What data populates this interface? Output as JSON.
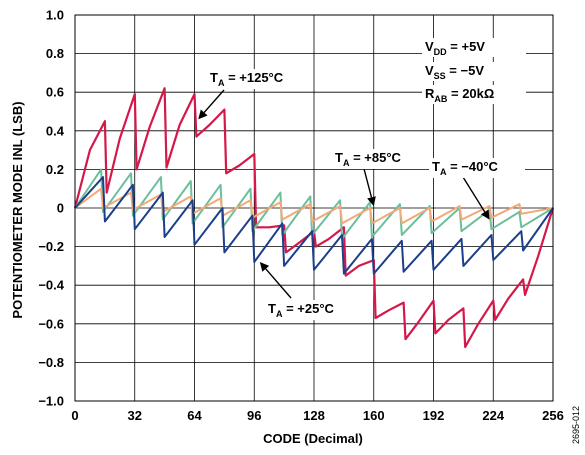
{
  "chart_data": {
    "type": "line",
    "title": "",
    "xlabel": "CODE (Decimal)",
    "ylabel": "POTENTIOMETER MODE INL (LSB)",
    "xlim": [
      0,
      256
    ],
    "ylim": [
      -1.0,
      1.0
    ],
    "x_ticks": [
      "0",
      "32",
      "64",
      "96",
      "128",
      "160",
      "192",
      "224",
      "256"
    ],
    "y_ticks": [
      "1.0",
      "0.8",
      "0.6",
      "0.4",
      "0.2",
      "0",
      "−0.2",
      "−0.4",
      "−0.6",
      "−0.8",
      "−1.0"
    ],
    "grid": true,
    "figure_id": "2695-012",
    "conditions": [
      {
        "main": "V",
        "sub": "DD",
        "rest": " = +5V"
      },
      {
        "main": "V",
        "sub": "SS",
        "rest": " = −5V"
      },
      {
        "main": "R",
        "sub": "AB",
        "rest": " = 20kΩ"
      }
    ],
    "series": [
      {
        "name_main": "T",
        "name_sub": "A",
        "name_rest": " = +125°C",
        "color": "#d4184a",
        "x": [
          0,
          8,
          16,
          17,
          24,
          32,
          33,
          40,
          48,
          49,
          56,
          64,
          65,
          72,
          80,
          81,
          88,
          96,
          97,
          104,
          112,
          113,
          120,
          128,
          129,
          136,
          144,
          145,
          152,
          160,
          161,
          168,
          176,
          177,
          184,
          192,
          193,
          200,
          208,
          209,
          216,
          224,
          225,
          232,
          240,
          241,
          248,
          256
        ],
        "y": [
          0.0,
          0.3,
          0.45,
          0.08,
          0.36,
          0.59,
          0.2,
          0.42,
          0.62,
          0.21,
          0.43,
          0.59,
          0.37,
          0.43,
          0.51,
          0.18,
          0.22,
          0.28,
          -0.1,
          -0.1,
          -0.09,
          -0.23,
          -0.18,
          -0.12,
          -0.2,
          -0.16,
          -0.1,
          -0.35,
          -0.3,
          -0.27,
          -0.57,
          -0.53,
          -0.49,
          -0.68,
          -0.59,
          -0.48,
          -0.65,
          -0.58,
          -0.52,
          -0.72,
          -0.6,
          -0.48,
          -0.58,
          -0.47,
          -0.37,
          -0.45,
          -0.25,
          0.0
        ]
      },
      {
        "name_main": "T",
        "name_sub": "A",
        "name_rest": " = +85°C",
        "color": "#6cbf9b",
        "x": [
          0,
          14,
          15,
          30,
          31,
          46,
          47,
          62,
          63,
          78,
          79,
          94,
          95,
          110,
          111,
          126,
          127,
          142,
          143,
          158,
          159,
          174,
          175,
          190,
          191,
          206,
          207,
          222,
          223,
          238,
          239,
          256
        ],
        "y": [
          0.0,
          0.2,
          -0.02,
          0.18,
          -0.04,
          0.16,
          -0.06,
          0.14,
          -0.08,
          0.12,
          -0.1,
          0.1,
          -0.12,
          0.08,
          -0.14,
          0.06,
          -0.14,
          0.04,
          -0.16,
          0.03,
          -0.15,
          0.02,
          -0.14,
          0.01,
          -0.13,
          0.0,
          -0.12,
          -0.01,
          -0.11,
          -0.02,
          -0.1,
          0.0
        ]
      },
      {
        "name_main": "T",
        "name_sub": "A",
        "name_rest": " = −40°C",
        "color": "#f2a978",
        "x": [
          0,
          14,
          15,
          30,
          31,
          46,
          47,
          62,
          63,
          78,
          79,
          94,
          95,
          110,
          111,
          126,
          127,
          142,
          143,
          158,
          159,
          174,
          175,
          190,
          191,
          206,
          207,
          222,
          223,
          238,
          239,
          256
        ],
        "y": [
          0.0,
          0.1,
          0.0,
          0.08,
          -0.01,
          0.07,
          -0.02,
          0.06,
          -0.03,
          0.05,
          -0.04,
          0.04,
          -0.05,
          0.03,
          -0.06,
          0.02,
          -0.07,
          0.01,
          -0.08,
          0.0,
          -0.08,
          0.0,
          -0.08,
          0.0,
          -0.07,
          0.01,
          -0.06,
          0.01,
          -0.05,
          0.02,
          -0.03,
          0.0
        ]
      },
      {
        "name_main": "T",
        "name_sub": "A",
        "name_rest": " = +25°C",
        "color": "#1b3f8c",
        "x": [
          0,
          15,
          16,
          31,
          32,
          47,
          48,
          63,
          64,
          79,
          80,
          95,
          96,
          111,
          112,
          127,
          128,
          143,
          144,
          159,
          160,
          175,
          176,
          191,
          192,
          207,
          208,
          223,
          224,
          239,
          240,
          256
        ],
        "y": [
          0.0,
          0.16,
          -0.07,
          0.12,
          -0.11,
          0.08,
          -0.15,
          0.04,
          -0.19,
          0.0,
          -0.23,
          -0.04,
          -0.28,
          -0.08,
          -0.3,
          -0.12,
          -0.32,
          -0.14,
          -0.34,
          -0.16,
          -0.34,
          -0.17,
          -0.33,
          -0.17,
          -0.32,
          -0.16,
          -0.3,
          -0.14,
          -0.27,
          -0.12,
          -0.22,
          0.0
        ]
      }
    ],
    "annotations": [
      {
        "series": 0,
        "text_main": "T",
        "text_sub": "A",
        "text_rest": " = +125°C",
        "anchor_x": 66,
        "anchor_y": 0.46
      },
      {
        "series": 1,
        "text_main": "T",
        "text_sub": "A",
        "text_rest": " = +85°C",
        "anchor_x": 160,
        "anchor_y": 0.01
      },
      {
        "series": 2,
        "text_main": "T",
        "text_sub": "A",
        "text_rest": " = −40°C",
        "anchor_x": 222,
        "anchor_y": -0.06
      },
      {
        "series": 3,
        "text_main": "T",
        "text_sub": "A",
        "text_rest": " = +25°C",
        "anchor_x": 99,
        "anchor_y": -0.28
      }
    ]
  }
}
